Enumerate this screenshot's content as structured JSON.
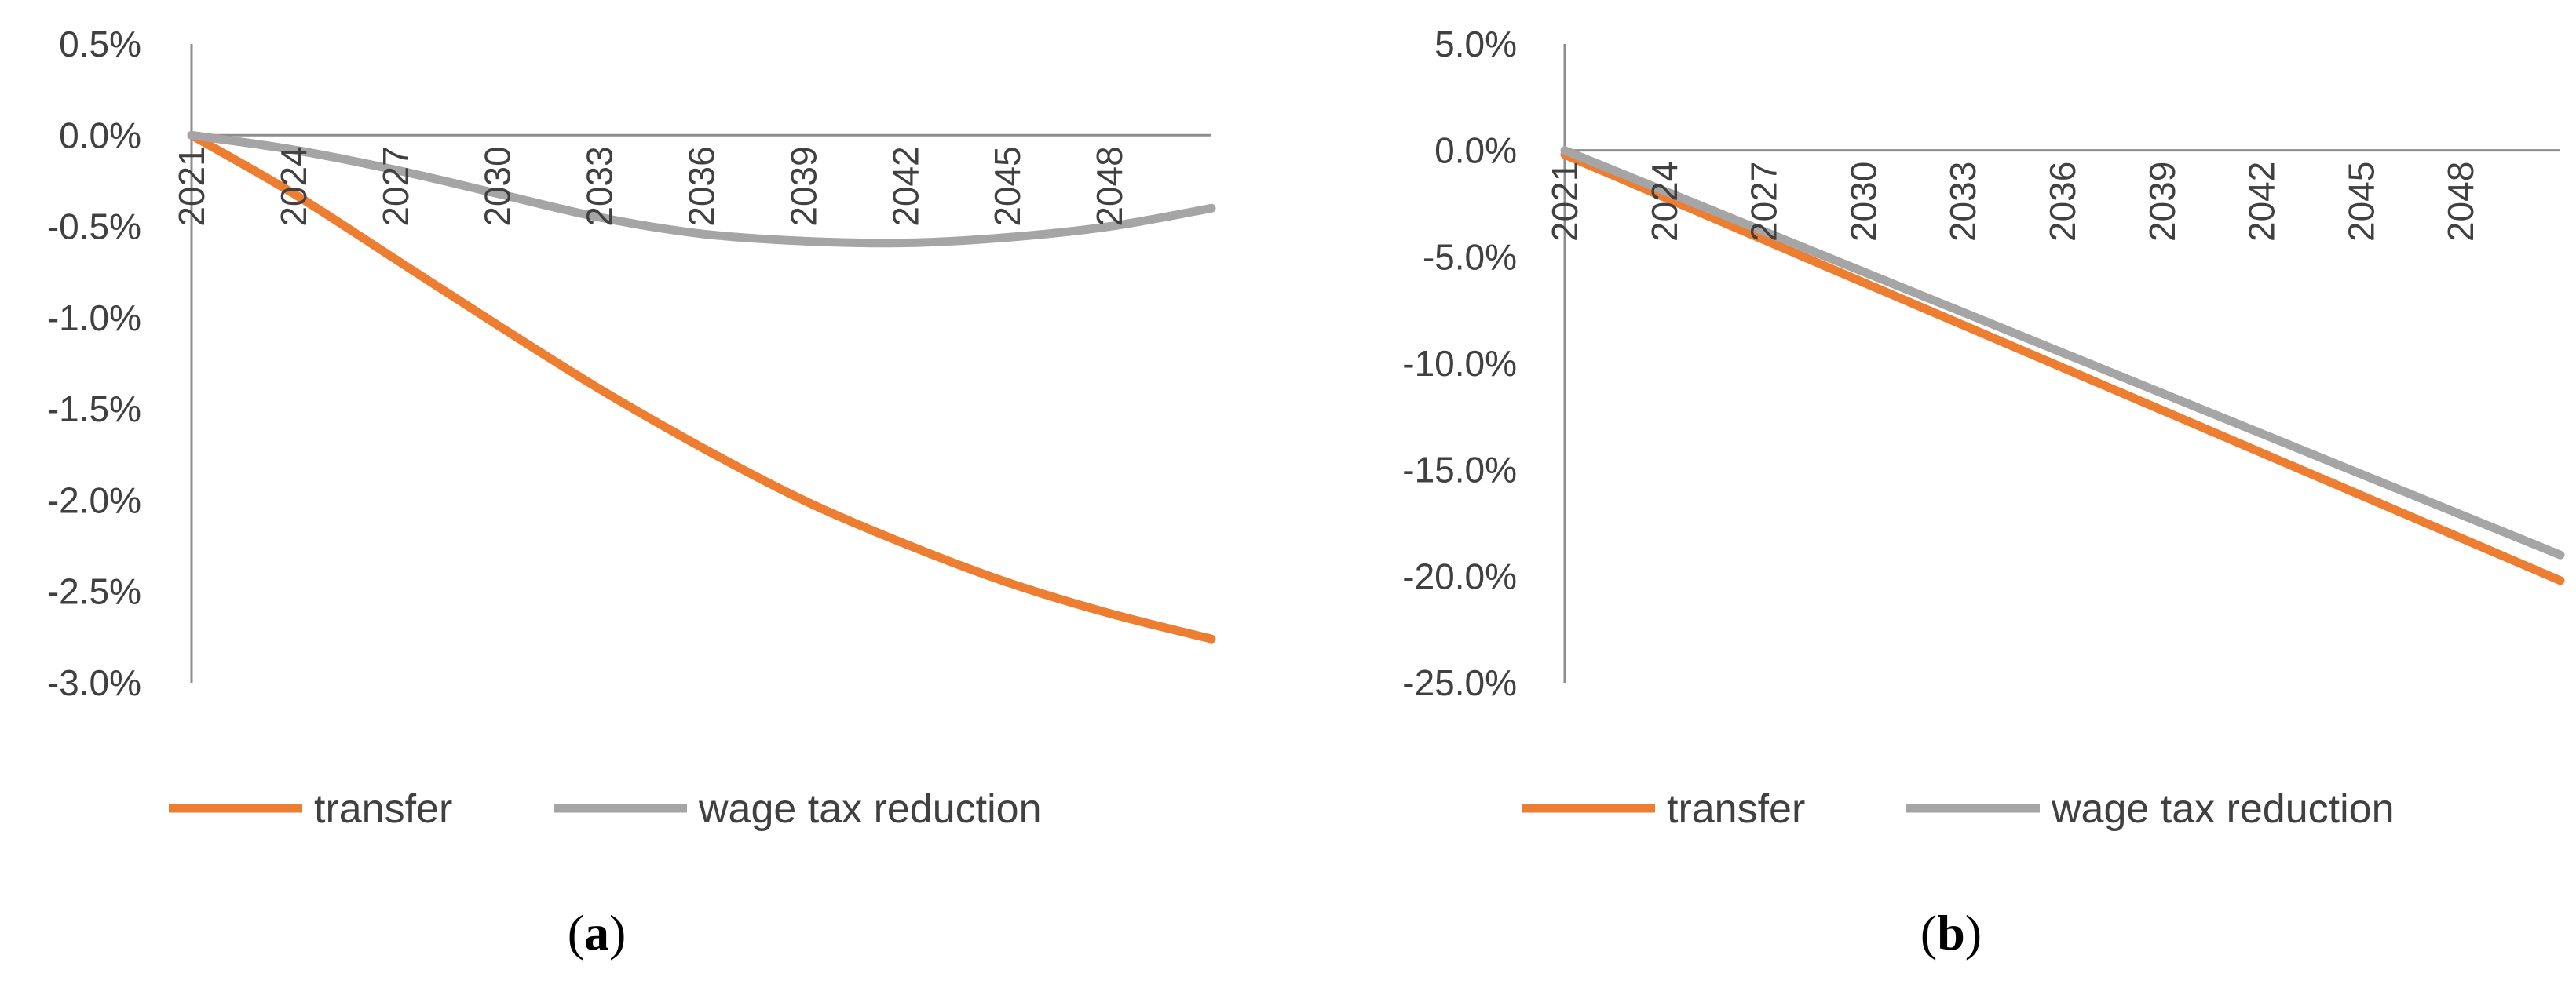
{
  "chart_data": [
    {
      "type": "line",
      "panel_label": "a",
      "y_tick_labels": [
        "0.5%",
        "0.0%",
        "-0.5%",
        "-1.0%",
        "-1.5%",
        "-2.0%",
        "-2.5%",
        "-3.0%"
      ],
      "ylim": [
        -0.03,
        0.005
      ],
      "y_ticks": [
        0.005,
        0,
        -0.005,
        -0.01,
        -0.015,
        -0.02,
        -0.025,
        -0.03
      ],
      "x_tick_labels": [
        "2021",
        "2024",
        "2027",
        "2030",
        "2033",
        "2036",
        "2039",
        "2042",
        "2045",
        "2048"
      ],
      "x_ticks": [
        2021,
        2024,
        2027,
        2030,
        2033,
        2036,
        2039,
        2042,
        2045,
        2048
      ],
      "xlim": [
        2021,
        2051
      ],
      "x": [
        2021,
        2024,
        2027,
        2030,
        2033,
        2036,
        2039,
        2042,
        2045,
        2048,
        2051
      ],
      "series": [
        {
          "name": "transfer",
          "color": "#ED7D31",
          "values": [
            0,
            -0.0032,
            -0.0068,
            -0.0104,
            -0.0139,
            -0.0171,
            -0.02,
            -0.0224,
            -0.0245,
            -0.0262,
            -0.0276
          ]
        },
        {
          "name": "wage tax reduction",
          "color": "#A5A5A5",
          "values": [
            0,
            -0.0008,
            -0.0019,
            -0.0032,
            -0.0045,
            -0.0054,
            -0.0058,
            -0.0059,
            -0.0056,
            -0.005,
            -0.004
          ]
        }
      ],
      "legend": [
        "transfer",
        "wage tax reduction"
      ]
    },
    {
      "type": "line",
      "panel_label": "b",
      "y_tick_labels": [
        "5.0%",
        "0.0%",
        "-5.0%",
        "-10.0%",
        "-15.0%",
        "-20.0%",
        "-25.0%"
      ],
      "ylim": [
        -0.25,
        0.05
      ],
      "y_ticks": [
        0.05,
        0,
        -0.05,
        -0.1,
        -0.15,
        -0.2,
        -0.25
      ],
      "x_tick_labels": [
        "2021",
        "2024",
        "2027",
        "2030",
        "2033",
        "2036",
        "2039",
        "2042",
        "2045",
        "2048"
      ],
      "x_ticks": [
        2021,
        2024,
        2027,
        2030,
        2033,
        2036,
        2039,
        2042,
        2045,
        2048
      ],
      "xlim": [
        2021,
        2051
      ],
      "x": [
        2021,
        2051
      ],
      "series": [
        {
          "name": "transfer",
          "color": "#ED7D31",
          "values": [
            -0.002,
            -0.202
          ]
        },
        {
          "name": "wage tax reduction",
          "color": "#A5A5A5",
          "values": [
            0,
            -0.19
          ]
        }
      ],
      "legend": [
        "transfer",
        "wage tax reduction"
      ]
    }
  ]
}
